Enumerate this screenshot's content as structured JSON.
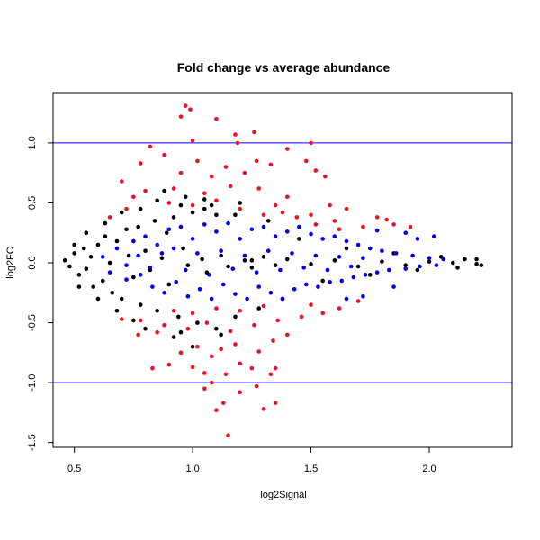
{
  "chart_data": {
    "type": "scatter",
    "title": "Fold change vs average abundance",
    "xlabel": "log2Signal",
    "ylabel": "log2FC",
    "xlim": [
      0.41,
      2.35
    ],
    "ylim": [
      -1.54,
      1.42
    ],
    "x_ticks": [
      0.5,
      1.0,
      1.5,
      2.0
    ],
    "x_tick_labels": [
      "0.5",
      "1.0",
      "1.5",
      "2.0"
    ],
    "y_ticks": [
      -1.5,
      -1.0,
      -0.5,
      0.0,
      0.5,
      1.0
    ],
    "y_tick_labels": [
      "-1.5",
      "-1.0",
      "-0.5",
      "0.0",
      "0.5",
      "1.0"
    ],
    "reference_lines": [
      {
        "y": 1.0,
        "color": "#0000ff"
      },
      {
        "y": -1.0,
        "color": "#0000ff"
      }
    ],
    "grid": false,
    "legend": "none",
    "series": [
      {
        "color": "#000000",
        "points": [
          [
            0.46,
            0.02
          ],
          [
            0.48,
            -0.03
          ],
          [
            0.5,
            0.08
          ],
          [
            0.52,
            -0.1
          ],
          [
            0.54,
            0.12
          ],
          [
            0.55,
            -0.05
          ],
          [
            0.57,
            0.05
          ],
          [
            0.58,
            -0.2
          ],
          [
            0.6,
            0.15
          ],
          [
            0.62,
            -0.15
          ],
          [
            0.63,
            0.22
          ],
          [
            0.65,
            0.0
          ],
          [
            0.66,
            -0.25
          ],
          [
            0.68,
            0.18
          ],
          [
            0.7,
            -0.3
          ],
          [
            0.72,
            0.28
          ],
          [
            0.73,
            0.06
          ],
          [
            0.75,
            -0.12
          ],
          [
            0.77,
            0.3
          ],
          [
            0.78,
            -0.35
          ],
          [
            0.8,
            0.1
          ],
          [
            0.82,
            -0.06
          ],
          [
            0.84,
            0.35
          ],
          [
            0.85,
            -0.4
          ],
          [
            0.87,
            0.04
          ],
          [
            0.89,
            0.25
          ],
          [
            0.9,
            -0.18
          ],
          [
            0.92,
            0.38
          ],
          [
            0.94,
            -0.45
          ],
          [
            0.96,
            0.12
          ],
          [
            0.98,
            -0.02
          ],
          [
            1.0,
            0.42
          ],
          [
            1.02,
            -0.5
          ],
          [
            1.04,
            0.03
          ],
          [
            1.06,
            -0.08
          ],
          [
            1.08,
            0.48
          ],
          [
            1.1,
            -0.55
          ],
          [
            1.12,
            0.06
          ],
          [
            1.15,
            -0.03
          ],
          [
            1.18,
            0.4
          ],
          [
            1.22,
            0.02
          ],
          [
            1.25,
            -0.04
          ],
          [
            1.3,
            0.05
          ],
          [
            1.35,
            -0.02
          ],
          [
            1.4,
            0.03
          ],
          [
            1.5,
            -0.01
          ],
          [
            1.6,
            0.02
          ],
          [
            1.7,
            -0.03
          ],
          [
            1.8,
            0.01
          ],
          [
            1.9,
            -0.02
          ],
          [
            2.0,
            0.01
          ],
          [
            2.1,
            0.0
          ],
          [
            2.15,
            0.03
          ],
          [
            2.2,
            -0.01
          ],
          [
            2.22,
            -0.02
          ],
          [
            2.2,
            0.03
          ],
          [
            0.8,
            -0.55
          ],
          [
            0.85,
            0.52
          ],
          [
            0.92,
            -0.62
          ],
          [
            1.0,
            -0.7
          ],
          [
            0.97,
            0.55
          ],
          [
            1.05,
            0.53
          ],
          [
            1.12,
            -0.6
          ],
          [
            1.18,
            -0.45
          ],
          [
            0.78,
            0.45
          ],
          [
            0.75,
            -0.48
          ],
          [
            0.7,
            0.42
          ],
          [
            0.68,
            -0.4
          ],
          [
            0.88,
            0.6
          ],
          [
            0.95,
            -0.58
          ],
          [
            1.2,
            0.5
          ],
          [
            1.28,
            -0.38
          ],
          [
            1.32,
            0.35
          ],
          [
            1.38,
            -0.3
          ],
          [
            0.63,
            0.33
          ],
          [
            0.6,
            -0.3
          ],
          [
            0.55,
            0.25
          ],
          [
            0.52,
            -0.2
          ],
          [
            0.5,
            0.15
          ],
          [
            1.45,
            0.2
          ],
          [
            1.55,
            -0.15
          ],
          [
            1.65,
            0.12
          ],
          [
            1.75,
            -0.1
          ],
          [
            1.85,
            0.08
          ],
          [
            1.95,
            -0.06
          ],
          [
            2.05,
            0.05
          ],
          [
            2.12,
            -0.04
          ],
          [
            1.05,
            0.45
          ],
          [
            1.1,
            0.4
          ],
          [
            0.95,
            0.48
          ],
          [
            1.25,
            0.02
          ]
        ]
      },
      {
        "color": "#ee1122",
        "points": [
          [
            0.97,
            1.31
          ],
          [
            0.99,
            1.28
          ],
          [
            1.1,
            1.2
          ],
          [
            0.95,
            1.22
          ],
          [
            1.0,
            1.02
          ],
          [
            1.18,
            1.07
          ],
          [
            1.19,
            1.0
          ],
          [
            1.26,
            1.09
          ],
          [
            1.5,
            1.0
          ],
          [
            1.4,
            0.95
          ],
          [
            1.56,
            0.72
          ],
          [
            0.82,
            0.97
          ],
          [
            0.78,
            0.83
          ],
          [
            0.88,
            0.9
          ],
          [
            1.02,
            0.85
          ],
          [
            1.14,
            0.8
          ],
          [
            1.27,
            0.85
          ],
          [
            1.33,
            0.82
          ],
          [
            1.48,
            0.85
          ],
          [
            1.52,
            0.77
          ],
          [
            0.95,
            0.75
          ],
          [
            1.08,
            0.72
          ],
          [
            1.22,
            0.75
          ],
          [
            0.7,
            0.68
          ],
          [
            0.75,
            0.55
          ],
          [
            0.8,
            0.6
          ],
          [
            0.92,
            0.62
          ],
          [
            1.05,
            0.58
          ],
          [
            1.16,
            0.64
          ],
          [
            1.28,
            0.62
          ],
          [
            1.4,
            0.55
          ],
          [
            1.58,
            0.48
          ],
          [
            1.65,
            0.45
          ],
          [
            1.78,
            0.38
          ],
          [
            1.85,
            0.32
          ],
          [
            1.92,
            0.3
          ],
          [
            0.65,
            0.38
          ],
          [
            0.72,
            0.45
          ],
          [
            1.35,
            0.48
          ],
          [
            1.44,
            0.38
          ],
          [
            1.52,
            0.32
          ],
          [
            1.62,
            0.28
          ],
          [
            1.72,
            0.3
          ],
          [
            1.82,
            0.36
          ],
          [
            0.9,
            0.5
          ],
          [
            1.0,
            0.48
          ],
          [
            1.1,
            0.52
          ],
          [
            1.2,
            0.45
          ],
          [
            1.3,
            0.4
          ],
          [
            1.38,
            0.42
          ],
          [
            1.5,
            0.4
          ],
          [
            1.6,
            0.35
          ],
          [
            1.1,
            -1.23
          ],
          [
            1.3,
            -1.22
          ],
          [
            1.15,
            -1.44
          ],
          [
            1.13,
            -1.17
          ],
          [
            1.35,
            -1.17
          ],
          [
            1.08,
            -1.0
          ],
          [
            1.05,
            -1.05
          ],
          [
            1.2,
            -1.08
          ],
          [
            1.27,
            -1.03
          ],
          [
            0.83,
            -0.88
          ],
          [
            0.9,
            -0.85
          ],
          [
            1.0,
            -0.87
          ],
          [
            1.05,
            -0.92
          ],
          [
            1.14,
            -0.93
          ],
          [
            1.2,
            -0.84
          ],
          [
            1.33,
            -0.93
          ],
          [
            1.35,
            -0.88
          ],
          [
            1.25,
            -0.88
          ],
          [
            0.95,
            -0.75
          ],
          [
            1.02,
            -0.7
          ],
          [
            1.08,
            -0.78
          ],
          [
            1.12,
            -0.72
          ],
          [
            1.18,
            -0.68
          ],
          [
            1.28,
            -0.74
          ],
          [
            1.34,
            -0.65
          ],
          [
            1.4,
            -0.6
          ],
          [
            0.77,
            -0.6
          ],
          [
            0.85,
            -0.58
          ],
          [
            0.7,
            -0.47
          ],
          [
            0.78,
            -0.48
          ],
          [
            0.88,
            -0.52
          ],
          [
            0.98,
            -0.55
          ],
          [
            1.06,
            -0.5
          ],
          [
            1.16,
            -0.57
          ],
          [
            1.26,
            -0.52
          ],
          [
            1.36,
            -0.48
          ],
          [
            1.46,
            -0.45
          ],
          [
            1.55,
            -0.42
          ],
          [
            1.62,
            -0.38
          ],
          [
            1.7,
            -0.32
          ],
          [
            1.5,
            -0.35
          ],
          [
            0.92,
            -0.4
          ],
          [
            1.0,
            -0.42
          ],
          [
            1.1,
            -0.38
          ],
          [
            1.2,
            -0.4
          ],
          [
            1.3,
            -0.36
          ]
        ]
      },
      {
        "color": "#0000ee",
        "points": [
          [
            0.62,
            0.05
          ],
          [
            0.65,
            -0.08
          ],
          [
            0.68,
            0.12
          ],
          [
            0.72,
            -0.14
          ],
          [
            0.75,
            0.18
          ],
          [
            0.78,
            -0.1
          ],
          [
            0.8,
            0.22
          ],
          [
            0.83,
            -0.2
          ],
          [
            0.85,
            0.15
          ],
          [
            0.88,
            -0.25
          ],
          [
            0.9,
            0.28
          ],
          [
            0.93,
            -0.16
          ],
          [
            0.95,
            0.3
          ],
          [
            0.98,
            -0.28
          ],
          [
            1.0,
            0.2
          ],
          [
            1.03,
            -0.22
          ],
          [
            1.05,
            0.32
          ],
          [
            1.08,
            -0.3
          ],
          [
            1.1,
            0.26
          ],
          [
            1.13,
            -0.18
          ],
          [
            1.15,
            0.33
          ],
          [
            1.18,
            -0.26
          ],
          [
            1.2,
            0.2
          ],
          [
            1.23,
            -0.3
          ],
          [
            1.25,
            0.28
          ],
          [
            1.28,
            -0.2
          ],
          [
            1.3,
            0.3
          ],
          [
            1.33,
            -0.25
          ],
          [
            1.35,
            0.22
          ],
          [
            1.38,
            -0.3
          ],
          [
            1.4,
            0.26
          ],
          [
            1.43,
            -0.22
          ],
          [
            1.45,
            0.3
          ],
          [
            1.48,
            -0.18
          ],
          [
            1.5,
            0.24
          ],
          [
            1.53,
            -0.2
          ],
          [
            1.55,
            0.2
          ],
          [
            1.58,
            -0.16
          ],
          [
            1.6,
            0.22
          ],
          [
            1.63,
            -0.15
          ],
          [
            1.65,
            0.18
          ],
          [
            1.68,
            -0.12
          ],
          [
            1.7,
            0.15
          ],
          [
            1.73,
            -0.1
          ],
          [
            1.75,
            0.12
          ],
          [
            1.78,
            -0.08
          ],
          [
            1.8,
            0.1
          ],
          [
            1.83,
            -0.06
          ],
          [
            1.86,
            0.08
          ],
          [
            1.9,
            -0.05
          ],
          [
            1.93,
            0.06
          ],
          [
            1.96,
            -0.03
          ],
          [
            2.0,
            0.04
          ],
          [
            2.03,
            -0.02
          ],
          [
            2.06,
            0.03
          ],
          [
            0.92,
            0.12
          ],
          [
            0.97,
            -0.06
          ],
          [
            1.02,
            0.08
          ],
          [
            1.07,
            -0.1
          ],
          [
            1.12,
            0.1
          ],
          [
            1.17,
            -0.05
          ],
          [
            1.22,
            0.06
          ],
          [
            1.27,
            -0.08
          ],
          [
            1.32,
            0.1
          ],
          [
            1.37,
            -0.06
          ],
          [
            1.42,
            0.08
          ],
          [
            1.47,
            -0.04
          ],
          [
            1.52,
            0.06
          ],
          [
            1.57,
            -0.06
          ],
          [
            1.62,
            0.05
          ],
          [
            1.67,
            -0.03
          ],
          [
            1.72,
            0.04
          ],
          [
            0.87,
            0.08
          ],
          [
            0.82,
            -0.04
          ],
          [
            0.77,
            0.06
          ],
          [
            0.72,
            -0.02
          ],
          [
            1.85,
            -0.2
          ],
          [
            1.72,
            -0.28
          ],
          [
            1.65,
            -0.3
          ],
          [
            1.95,
            0.2
          ],
          [
            2.02,
            0.22
          ],
          [
            1.9,
            0.25
          ],
          [
            1.78,
            0.27
          ]
        ]
      }
    ]
  }
}
